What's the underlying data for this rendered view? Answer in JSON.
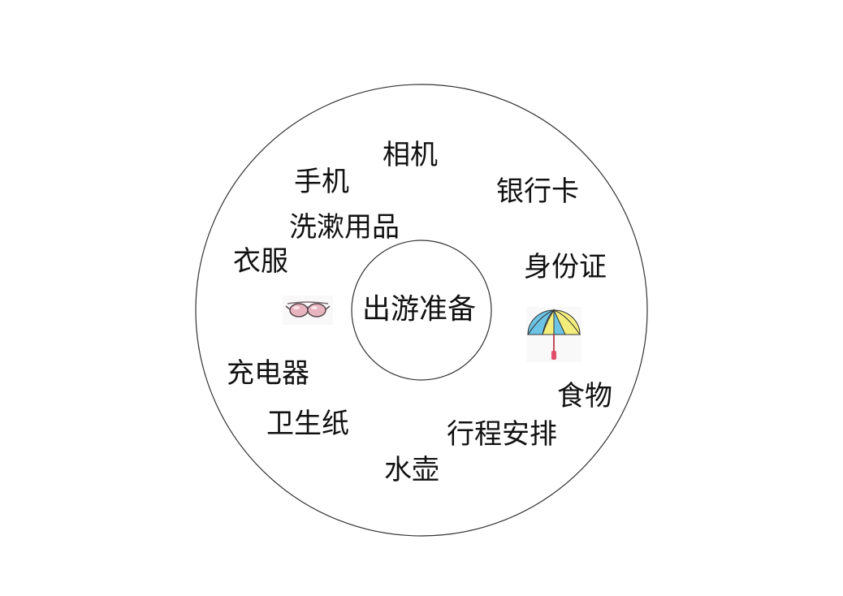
{
  "diagram": {
    "center_label": "出游准备",
    "items": [
      {
        "id": "camera",
        "label": "相机"
      },
      {
        "id": "phone",
        "label": "手机"
      },
      {
        "id": "bank-card",
        "label": "银行卡"
      },
      {
        "id": "toiletries",
        "label": "洗漱用品"
      },
      {
        "id": "clothes",
        "label": "衣服"
      },
      {
        "id": "id-card",
        "label": "身份证"
      },
      {
        "id": "charger",
        "label": "充电器"
      },
      {
        "id": "food",
        "label": "食物"
      },
      {
        "id": "toilet-paper",
        "label": "卫生纸"
      },
      {
        "id": "itinerary",
        "label": "行程安排"
      },
      {
        "id": "water-bottle",
        "label": "水壶"
      }
    ],
    "icons": [
      "sunglasses-icon",
      "umbrella-icon"
    ],
    "colors": {
      "line": "#333333",
      "text": "#111111",
      "umbrella_yellow": "#f3ee7c",
      "umbrella_blue": "#6cc3e3",
      "umbrella_handle": "#e0506a",
      "lens_pink": "#e8b4bf"
    }
  }
}
